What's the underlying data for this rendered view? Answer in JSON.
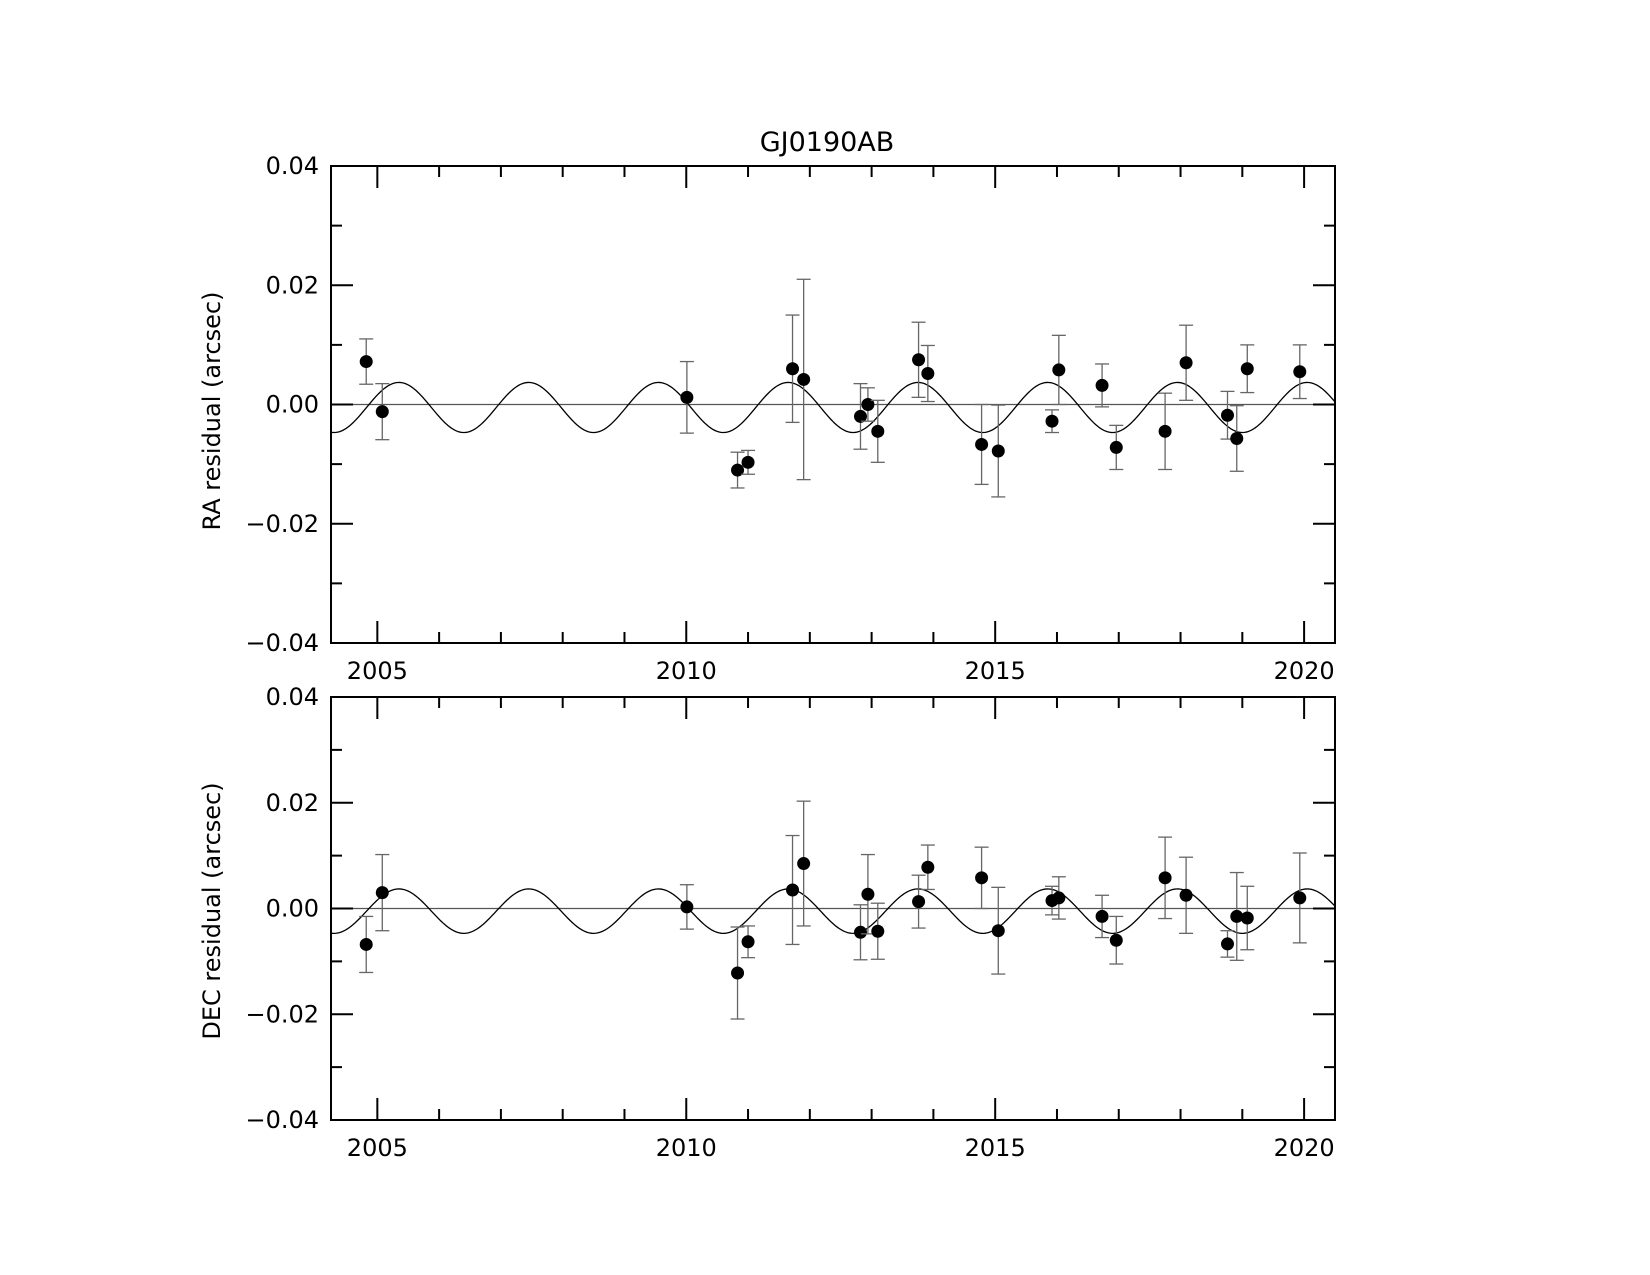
{
  "chart_data": {
    "type": "scatter",
    "title": "GJ0190AB",
    "xlim": [
      2004.25,
      2020.5
    ],
    "x_major_ticks": [
      2005,
      2010,
      2015,
      2020
    ],
    "x_minor_step": 1,
    "model_curve": {
      "shape": "sinusoid",
      "amplitude": 0.0042,
      "offset": -0.0005,
      "period_years": 2.1,
      "peak_epoch": 2005.35
    },
    "panels": [
      {
        "id": "ra",
        "ylabel": "RA residual (arcsec)",
        "ylim": [
          -0.04,
          0.04
        ],
        "y_major_ticks": [
          {
            "value": -0.04,
            "label": "−0.04"
          },
          {
            "value": -0.02,
            "label": "−0.02"
          },
          {
            "value": 0.0,
            "label": "0.00"
          },
          {
            "value": 0.02,
            "label": "0.02"
          },
          {
            "value": 0.04,
            "label": "0.04"
          }
        ],
        "x_tick_labels": [
          "2005",
          "2010",
          "2015",
          "2020"
        ],
        "points": [
          {
            "x": 2004.82,
            "y": 0.0072,
            "err": 0.0038
          },
          {
            "x": 2005.08,
            "y": -0.0012,
            "err": 0.0047
          },
          {
            "x": 2010.01,
            "y": 0.0012,
            "err": 0.006
          },
          {
            "x": 2010.83,
            "y": -0.011,
            "err": 0.003
          },
          {
            "x": 2011.0,
            "y": -0.0097,
            "err": 0.002
          },
          {
            "x": 2011.72,
            "y": 0.006,
            "err": 0.009
          },
          {
            "x": 2011.9,
            "y": 0.0042,
            "err": 0.0168
          },
          {
            "x": 2012.82,
            "y": -0.002,
            "err": 0.0055
          },
          {
            "x": 2012.94,
            "y": 0.0,
            "err": 0.0028
          },
          {
            "x": 2013.1,
            "y": -0.0045,
            "err": 0.0052
          },
          {
            "x": 2013.76,
            "y": 0.0075,
            "err": 0.0063
          },
          {
            "x": 2013.91,
            "y": 0.0052,
            "err": 0.0047
          },
          {
            "x": 2014.78,
            "y": -0.0067,
            "err": 0.0067
          },
          {
            "x": 2015.05,
            "y": -0.0078,
            "err": 0.0077
          },
          {
            "x": 2015.92,
            "y": -0.0028,
            "err": 0.0019
          },
          {
            "x": 2016.03,
            "y": 0.0058,
            "err": 0.0058
          },
          {
            "x": 2016.73,
            "y": 0.0032,
            "err": 0.0036
          },
          {
            "x": 2016.96,
            "y": -0.0072,
            "err": 0.0037
          },
          {
            "x": 2017.75,
            "y": -0.0045,
            "err": 0.0064
          },
          {
            "x": 2018.09,
            "y": 0.007,
            "err": 0.0063
          },
          {
            "x": 2018.76,
            "y": -0.0018,
            "err": 0.004
          },
          {
            "x": 2018.91,
            "y": -0.0057,
            "err": 0.0055
          },
          {
            "x": 2019.08,
            "y": 0.006,
            "err": 0.004
          },
          {
            "x": 2019.93,
            "y": 0.0055,
            "err": 0.0045
          }
        ]
      },
      {
        "id": "dec",
        "ylabel": "DEC residual (arcsec)",
        "ylim": [
          -0.04,
          0.04
        ],
        "y_major_ticks": [
          {
            "value": -0.04,
            "label": "−0.04"
          },
          {
            "value": -0.02,
            "label": "−0.02"
          },
          {
            "value": 0.0,
            "label": "0.00"
          },
          {
            "value": 0.02,
            "label": "0.02"
          },
          {
            "value": 0.04,
            "label": "0.04"
          }
        ],
        "x_tick_labels": [
          "2005",
          "2010",
          "2015",
          "2020"
        ],
        "points": [
          {
            "x": 2004.82,
            "y": -0.0068,
            "err": 0.0053
          },
          {
            "x": 2005.08,
            "y": 0.003,
            "err": 0.0072
          },
          {
            "x": 2010.01,
            "y": 0.0003,
            "err": 0.0042
          },
          {
            "x": 2010.83,
            "y": -0.0122,
            "err": 0.0087
          },
          {
            "x": 2011.0,
            "y": -0.0063,
            "err": 0.003
          },
          {
            "x": 2011.72,
            "y": 0.0035,
            "err": 0.0103
          },
          {
            "x": 2011.9,
            "y": 0.0085,
            "err": 0.0118
          },
          {
            "x": 2012.82,
            "y": -0.0045,
            "err": 0.0052
          },
          {
            "x": 2012.94,
            "y": 0.0027,
            "err": 0.0075
          },
          {
            "x": 2013.1,
            "y": -0.0043,
            "err": 0.0053
          },
          {
            "x": 2013.76,
            "y": 0.0013,
            "err": 0.005
          },
          {
            "x": 2013.91,
            "y": 0.0078,
            "err": 0.0042
          },
          {
            "x": 2014.78,
            "y": 0.0058,
            "err": 0.0058
          },
          {
            "x": 2015.05,
            "y": -0.0042,
            "err": 0.0082
          },
          {
            "x": 2015.92,
            "y": 0.0015,
            "err": 0.0027
          },
          {
            "x": 2016.03,
            "y": 0.002,
            "err": 0.004
          },
          {
            "x": 2016.73,
            "y": -0.0015,
            "err": 0.004
          },
          {
            "x": 2016.96,
            "y": -0.006,
            "err": 0.0045
          },
          {
            "x": 2017.75,
            "y": 0.0058,
            "err": 0.0077
          },
          {
            "x": 2018.09,
            "y": 0.0025,
            "err": 0.0072
          },
          {
            "x": 2018.76,
            "y": -0.0067,
            "err": 0.0025
          },
          {
            "x": 2018.91,
            "y": -0.0015,
            "err": 0.0083
          },
          {
            "x": 2019.08,
            "y": -0.0018,
            "err": 0.006
          },
          {
            "x": 2019.93,
            "y": 0.002,
            "err": 0.0085
          }
        ]
      }
    ]
  }
}
